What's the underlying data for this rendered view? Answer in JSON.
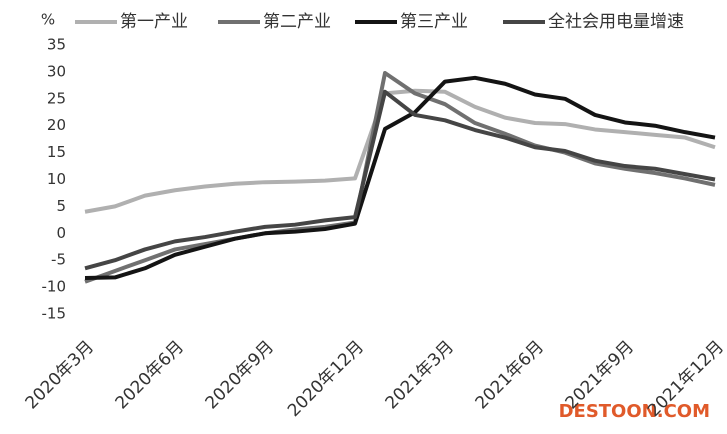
{
  "chart_data": {
    "type": "line",
    "y_label": "%",
    "categories": [
      "2020年3月",
      null,
      null,
      "2020年6月",
      null,
      null,
      "2020年9月",
      null,
      null,
      "2020年12月",
      null,
      null,
      "2021年3月",
      null,
      null,
      "2021年6月",
      null,
      null,
      "2021年9月",
      null,
      null,
      "2021年12月"
    ],
    "series": [
      {
        "name": "第一产业",
        "color": "#b0b0b0",
        "values": [
          4,
          5,
          7,
          8,
          8.7,
          9.2,
          9.5,
          9.6,
          9.8,
          10.2,
          26,
          26.5,
          26.3,
          23.5,
          21.5,
          20.5,
          20.3,
          19.3,
          18.8,
          18.3,
          17.8,
          16
        ]
      },
      {
        "name": "第二产业",
        "color": "#707070",
        "values": [
          -9,
          -7,
          -5,
          -3,
          -2,
          -1,
          0,
          0.7,
          1.2,
          2,
          29.8,
          26,
          24,
          20.5,
          18.5,
          16.3,
          15,
          13,
          12,
          11.2,
          10.2,
          9
        ]
      },
      {
        "name": "第三产业",
        "color": "#141414",
        "values": [
          -8.3,
          -8.2,
          -6.5,
          -4,
          -2.5,
          -1,
          0,
          0.3,
          0.8,
          1.8,
          19.4,
          22.5,
          28.2,
          28.9,
          27.8,
          25.8,
          25,
          22,
          20.6,
          20,
          18.8,
          17.8
        ]
      },
      {
        "name": "全社会用电量增速",
        "color": "#454545",
        "values": [
          -6.5,
          -5,
          -3,
          -1.5,
          -0.7,
          0.3,
          1.2,
          1.6,
          2.4,
          3,
          26.3,
          22,
          21,
          19.2,
          17.8,
          16,
          15.3,
          13.5,
          12.5,
          12,
          11,
          10
        ]
      }
    ],
    "ylim": [
      -15,
      35
    ],
    "yticks": [
      -15,
      -10,
      -5,
      0,
      5,
      10,
      15,
      20,
      25,
      30,
      35
    ],
    "grid": false,
    "legend": "top",
    "watermark": "DESTOON.COM"
  }
}
